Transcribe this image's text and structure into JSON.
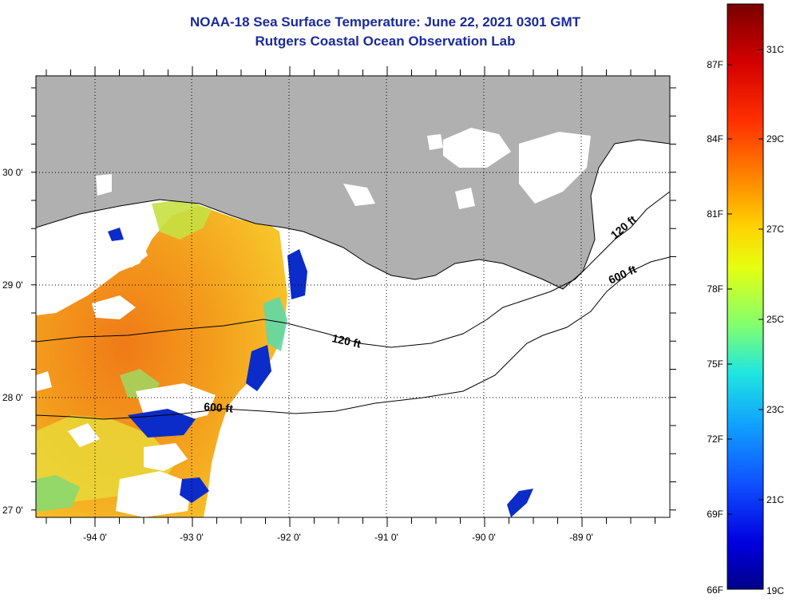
{
  "title": {
    "line1": "NOAA-18 Sea Surface Temperature:  June 22, 2021 0301 GMT",
    "line2": "Rutgers Coastal Ocean Observation Lab"
  },
  "map": {
    "lat_labels": [
      "30 0'",
      "29 0'",
      "28 0'",
      "27 0'"
    ],
    "lon_labels": [
      "-94 0'",
      "-93 0'",
      "-92 0'",
      "-91 0'",
      "-90 0'",
      "-89 0'"
    ],
    "contour_labels": [
      "120 ft",
      "600 ft",
      "120 ft",
      "600 ft"
    ],
    "colors": {
      "land": "#b0b0b0",
      "cloud": "#ffffff",
      "coastline": "#000000"
    }
  },
  "colorbar": {
    "fahrenheit_labels": [
      "87F",
      "84F",
      "81F",
      "78F",
      "75F",
      "72F",
      "69F",
      "66F"
    ],
    "celsius_labels": [
      "31C",
      "29C",
      "27C",
      "25C",
      "23C",
      "21C",
      "19C"
    ],
    "gradient": [
      "#7a0000",
      "#d40000",
      "#ff3000",
      "#ff8800",
      "#ffd200",
      "#e6ff10",
      "#80ff70",
      "#20e6e0",
      "#10a0ff",
      "#1050ff",
      "#0000e0",
      "#00008a"
    ]
  }
}
